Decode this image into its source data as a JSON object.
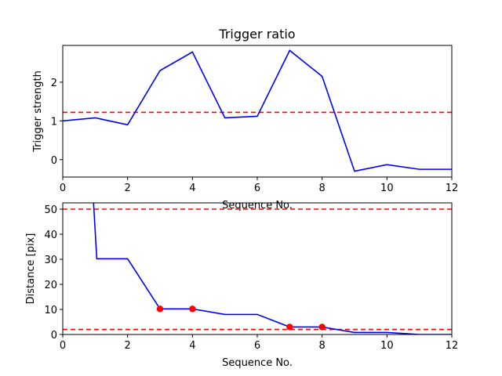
{
  "chart_data": [
    {
      "type": "line",
      "title": "Trigger ratio",
      "xlabel": "Sequence No.",
      "ylabel": "Trigger strength",
      "xlim": [
        0,
        12
      ],
      "ylim": [
        -0.45,
        2.95
      ],
      "xticks": [
        0,
        2,
        4,
        6,
        8,
        10,
        12
      ],
      "yticks": [
        0,
        1,
        2
      ],
      "grid": false,
      "series": [
        {
          "color": "#0000ff",
          "style": "solid",
          "x": [
            0,
            1,
            2,
            3,
            4,
            5,
            6,
            7,
            8,
            9,
            10,
            11,
            12
          ],
          "values": [
            1.0,
            1.08,
            0.9,
            2.3,
            2.78,
            1.08,
            1.12,
            2.82,
            2.15,
            -0.3,
            -0.13,
            -0.25,
            -0.25
          ]
        }
      ],
      "hlines": [
        {
          "y": 1.22,
          "color": "#ff0000",
          "style": "dashed"
        }
      ]
    },
    {
      "type": "line",
      "title": "",
      "xlabel": "Sequence No.",
      "ylabel": "Distance [pix]",
      "xlim": [
        0,
        12
      ],
      "ylim": [
        0,
        52.5
      ],
      "xticks": [
        0,
        2,
        4,
        6,
        8,
        10,
        12
      ],
      "yticks": [
        0,
        10,
        20,
        30,
        40,
        50
      ],
      "grid": false,
      "series": [
        {
          "color": "#0000ff",
          "style": "solid",
          "x": [
            0.95,
            1.05,
            2,
            3,
            4,
            5,
            6,
            7,
            8,
            9,
            10,
            11,
            12
          ],
          "values": [
            52.5,
            30.2,
            30.2,
            10.2,
            10.2,
            8.0,
            8.0,
            3.0,
            3.0,
            0.8,
            0.8,
            0.0,
            0.0
          ]
        }
      ],
      "markers": {
        "color": "#ff0000",
        "x": [
          3,
          4,
          7,
          8
        ],
        "values": [
          10.2,
          10.2,
          3.0,
          3.0
        ]
      },
      "hlines": [
        {
          "y": 50,
          "color": "#ff0000",
          "style": "dashed"
        },
        {
          "y": 2,
          "color": "#ff0000",
          "style": "dashed"
        }
      ]
    }
  ]
}
